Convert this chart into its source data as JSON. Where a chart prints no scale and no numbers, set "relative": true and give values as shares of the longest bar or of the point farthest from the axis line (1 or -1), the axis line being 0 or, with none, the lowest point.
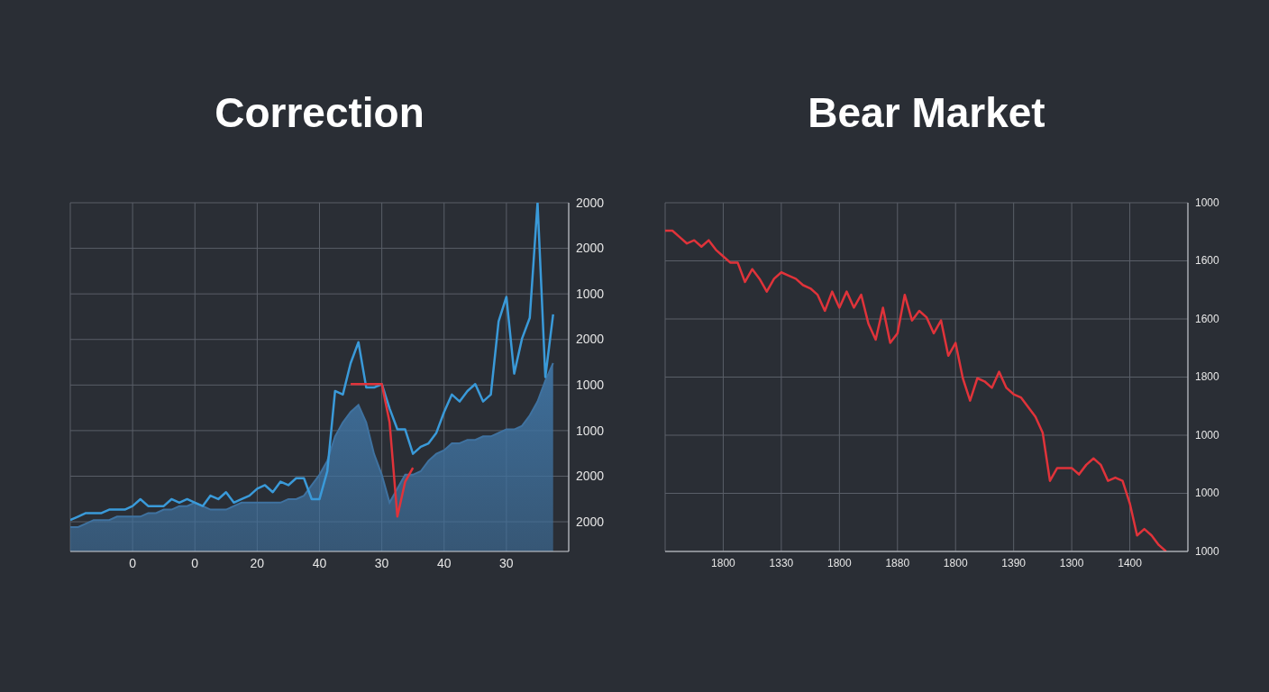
{
  "chart_data": [
    {
      "type": "line",
      "title": "Correction",
      "relative": true,
      "grid": true,
      "categories": [
        null,
        null,
        null,
        null,
        null,
        null,
        null,
        null,
        "0",
        null,
        null,
        null,
        null,
        null,
        null,
        null,
        "0",
        null,
        null,
        null,
        null,
        null,
        null,
        null,
        "20",
        null,
        null,
        null,
        null,
        null,
        null,
        null,
        "40",
        null,
        null,
        null,
        null,
        null,
        null,
        null,
        "30",
        null,
        null,
        null,
        null,
        null,
        null,
        null,
        "40",
        null,
        null,
        null,
        null,
        null,
        null,
        null,
        "30",
        null,
        null,
        null,
        null,
        null,
        null,
        null,
        null
      ],
      "annotations": [
        "2000",
        "2000",
        "1000",
        "2000",
        "1000",
        "1000",
        "2000",
        "2000"
      ],
      "series": [
        {
          "type": "area",
          "color": "#3f72a0",
          "values": [
            0.07,
            0.07,
            0.08,
            0.09,
            0.09,
            0.09,
            0.1,
            0.1,
            0.1,
            0.1,
            0.11,
            0.11,
            0.12,
            0.12,
            0.13,
            0.13,
            0.14,
            0.13,
            0.12,
            0.12,
            0.12,
            0.13,
            0.14,
            0.14,
            0.14,
            0.14,
            0.14,
            0.14,
            0.15,
            0.15,
            0.16,
            0.19,
            0.22,
            0.26,
            0.33,
            0.37,
            0.4,
            0.42,
            0.37,
            0.28,
            0.22,
            0.14,
            0.18,
            0.22,
            0.22,
            0.23,
            0.26,
            0.28,
            0.29,
            0.31,
            0.31,
            0.32,
            0.32,
            0.33,
            0.33,
            0.34,
            0.35,
            0.35,
            0.36,
            0.39,
            0.43,
            0.49,
            0.54,
            null,
            null
          ]
        },
        {
          "color": "#3a9ad9",
          "values": [
            0.09,
            0.1,
            0.11,
            0.11,
            0.11,
            0.12,
            0.12,
            0.12,
            0.13,
            0.15,
            0.13,
            0.13,
            0.13,
            0.15,
            0.14,
            0.15,
            0.14,
            0.13,
            0.16,
            0.15,
            0.17,
            0.14,
            0.15,
            0.16,
            0.18,
            0.19,
            0.17,
            0.2,
            0.19,
            0.21,
            0.21,
            0.15,
            0.15,
            0.23,
            0.46,
            0.45,
            0.54,
            0.6,
            0.47,
            0.47,
            0.48,
            0.41,
            0.35,
            0.35,
            0.28,
            0.3,
            0.31,
            0.34,
            0.4,
            0.45,
            0.43,
            0.46,
            0.48,
            0.43,
            0.45,
            0.66,
            0.73,
            0.51,
            0.61,
            0.67,
            1.0,
            0.5,
            0.68,
            null,
            null
          ]
        },
        {
          "color": "#e0333a",
          "values": [
            null,
            null,
            null,
            null,
            null,
            null,
            null,
            null,
            null,
            null,
            null,
            null,
            null,
            null,
            null,
            null,
            null,
            null,
            null,
            null,
            null,
            null,
            null,
            null,
            null,
            null,
            null,
            null,
            null,
            null,
            null,
            null,
            null,
            null,
            null,
            null,
            0.48,
            0.48,
            0.48,
            0.48,
            0.48,
            0.37,
            0.1,
            0.2,
            0.24,
            null,
            null,
            null,
            null,
            null,
            null,
            null,
            null,
            null,
            null,
            null,
            null,
            null,
            null,
            null,
            null,
            null,
            null,
            null,
            null
          ]
        }
      ]
    },
    {
      "type": "line",
      "title": "Bear Market",
      "relative": true,
      "grid": true,
      "categories": [
        null,
        null,
        null,
        null,
        null,
        null,
        null,
        null,
        "1800",
        null,
        null,
        null,
        null,
        null,
        null,
        null,
        "1330",
        null,
        null,
        null,
        null,
        null,
        null,
        null,
        "1800",
        null,
        null,
        null,
        null,
        null,
        null,
        null,
        "1880",
        null,
        null,
        null,
        null,
        null,
        null,
        null,
        "1800",
        null,
        null,
        null,
        null,
        null,
        null,
        null,
        "1390",
        null,
        null,
        null,
        null,
        null,
        null,
        null,
        "1300",
        null,
        null,
        null,
        null,
        null,
        null,
        null,
        "1400",
        null,
        null,
        null,
        null,
        null,
        null,
        null,
        null
      ],
      "annotations": [
        "1000",
        "1600",
        "1600",
        "1800",
        "1000",
        "1000",
        "1000"
      ],
      "series": [
        {
          "color": "#e0333a",
          "values": [
            1.0,
            1.0,
            0.98,
            0.96,
            0.97,
            0.95,
            0.97,
            0.94,
            0.92,
            0.9,
            0.9,
            0.84,
            0.88,
            0.85,
            0.81,
            0.85,
            0.87,
            0.86,
            0.85,
            0.83,
            0.82,
            0.8,
            0.75,
            0.81,
            0.76,
            0.81,
            0.76,
            0.8,
            0.71,
            0.66,
            0.76,
            0.65,
            0.68,
            0.8,
            0.72,
            0.75,
            0.73,
            0.68,
            0.72,
            0.61,
            0.65,
            0.54,
            0.47,
            0.54,
            0.53,
            0.51,
            0.56,
            0.51,
            0.49,
            0.48,
            0.45,
            0.42,
            0.37,
            0.22,
            0.26,
            0.26,
            0.26,
            0.24,
            0.27,
            0.29,
            0.27,
            0.22,
            0.23,
            0.22,
            0.15,
            0.05,
            0.07,
            0.05,
            0.02,
            0.0,
            null,
            null,
            null
          ]
        }
      ]
    }
  ]
}
